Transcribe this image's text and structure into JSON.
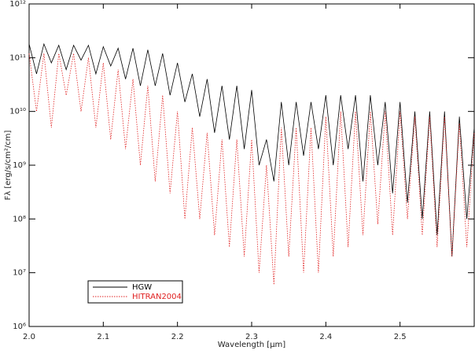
{
  "chart_data": {
    "type": "line",
    "xlabel": "Wavelength [μm]",
    "ylabel": "Fλ [erg/s/cm²/cm]",
    "yscale": "log",
    "xlim": [
      2.0,
      2.6
    ],
    "ylim": [
      1000000.0,
      1000000000000.0
    ],
    "xticks": [
      {
        "value": 2,
        "label": "2.0"
      },
      2.1,
      2.2,
      2.3,
      2.4,
      2.5
    ],
    "yticks": [
      {
        "value": 1000000.0,
        "label": "10⁶"
      },
      {
        "value": 10000000.0,
        "label": "10⁷"
      },
      {
        "value": 100000000.0,
        "label": "10⁸"
      },
      {
        "value": 1000000000.0,
        "label": "10⁹"
      },
      {
        "value": 10000000000.0,
        "label": "10¹⁰"
      },
      {
        "value": 100000000000.0,
        "label": "10¹¹"
      },
      {
        "value": 1000000000000.0,
        "label": "10¹²"
      }
    ],
    "legend": "lower left",
    "x": [
      2.0,
      2.01,
      2.02,
      2.03,
      2.04,
      2.05,
      2.06,
      2.07,
      2.08,
      2.09,
      2.1,
      2.11,
      2.12,
      2.13,
      2.14,
      2.15,
      2.16,
      2.17,
      2.18,
      2.19,
      2.2,
      2.21,
      2.22,
      2.23,
      2.24,
      2.25,
      2.26,
      2.27,
      2.28,
      2.29,
      2.3,
      2.31,
      2.32,
      2.33,
      2.34,
      2.35,
      2.36,
      2.37,
      2.38,
      2.39,
      2.4,
      2.41,
      2.42,
      2.43,
      2.44,
      2.45,
      2.46,
      2.47,
      2.48,
      2.49,
      2.5,
      2.51,
      2.52,
      2.53,
      2.54,
      2.55,
      2.56,
      2.57,
      2.58,
      2.59,
      2.6
    ],
    "series": [
      {
        "name": "HGW",
        "color": "#000000",
        "linestyle": "solid",
        "values": [
          180000000000.0,
          50000000000.0,
          180000000000.0,
          80000000000.0,
          170000000000.0,
          60000000000.0,
          170000000000.0,
          90000000000.0,
          170000000000.0,
          50000000000.0,
          160000000000.0,
          70000000000.0,
          150000000000.0,
          40000000000.0,
          150000000000.0,
          30000000000.0,
          140000000000.0,
          30000000000.0,
          120000000000.0,
          20000000000.0,
          80000000000.0,
          15000000000.0,
          50000000000.0,
          8000000000.0,
          40000000000.0,
          4000000000.0,
          30000000000.0,
          3000000000.0,
          30000000000.0,
          2000000000.0,
          25000000000.0,
          1000000000.0,
          3000000000.0,
          500000000.0,
          15000000000.0,
          1000000000.0,
          15000000000.0,
          1500000000.0,
          15000000000.0,
          2000000000.0,
          20000000000.0,
          1000000000.0,
          20000000000.0,
          2000000000.0,
          20000000000.0,
          500000000.0,
          20000000000.0,
          1000000000.0,
          15000000000.0,
          300000000.0,
          15000000000.0,
          200000000.0,
          10000000000.0,
          100000000.0,
          10000000000.0,
          50000000.0,
          10000000000.0,
          20000000.0,
          8000000000.0,
          100000000.0,
          5000000000.0
        ]
      },
      {
        "name": "HITRAN2004",
        "color": "#e02020",
        "linestyle": "dotted",
        "values": [
          120000000000.0,
          10000000000.0,
          120000000000.0,
          5000000000.0,
          120000000000.0,
          20000000000.0,
          120000000000.0,
          10000000000.0,
          100000000000.0,
          5000000000.0,
          80000000000.0,
          3000000000.0,
          60000000000.0,
          2000000000.0,
          40000000000.0,
          1000000000.0,
          30000000000.0,
          500000000.0,
          20000000000.0,
          300000000.0,
          10000000000.0,
          100000000.0,
          5000000000.0,
          100000000.0,
          4000000000.0,
          50000000.0,
          3000000000.0,
          30000000.0,
          3000000000.0,
          20000000.0,
          3000000000.0,
          10000000.0,
          1000000000.0,
          6000000.0,
          5000000000.0,
          20000000.0,
          5000000000.0,
          10000000.0,
          5000000000.0,
          10000000.0,
          8000000000.0,
          20000000.0,
          10000000000.0,
          30000000.0,
          10000000000.0,
          50000000.0,
          10000000000.0,
          80000000.0,
          10000000000.0,
          50000000.0,
          10000000000.0,
          100000000.0,
          8000000000.0,
          50000000.0,
          8000000000.0,
          30000000.0,
          8000000000.0,
          20000000.0,
          6000000000.0,
          30000000.0,
          4000000000.0
        ]
      }
    ]
  }
}
